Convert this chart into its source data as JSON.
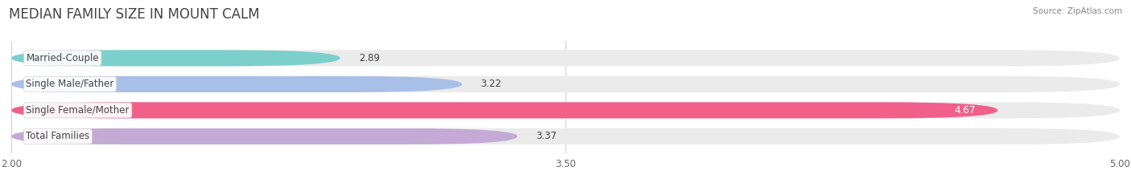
{
  "title": "MEDIAN FAMILY SIZE IN MOUNT CALM",
  "source": "Source: ZipAtlas.com",
  "categories": [
    "Married-Couple",
    "Single Male/Father",
    "Single Female/Mother",
    "Total Families"
  ],
  "values": [
    2.89,
    3.22,
    4.67,
    3.37
  ],
  "bar_colors": [
    "#7dcfcc",
    "#a8bfe8",
    "#f0608a",
    "#c4aad4"
  ],
  "background_color": "#ffffff",
  "bar_bg_color": "#ebebeb",
  "xlim": [
    2.0,
    5.0
  ],
  "xticks": [
    2.0,
    3.5,
    5.0
  ],
  "xtick_labels": [
    "2.00",
    "3.50",
    "5.00"
  ],
  "label_fontsize": 8.5,
  "value_fontsize": 8.5,
  "title_fontsize": 12,
  "bar_height": 0.62,
  "rounding": 0.31
}
